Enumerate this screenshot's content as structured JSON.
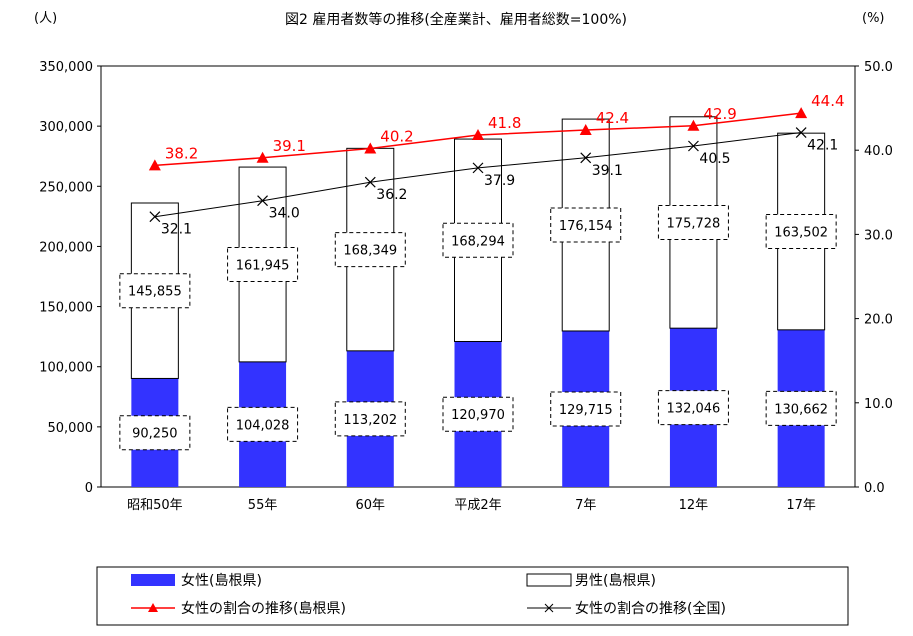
{
  "chart_data": {
    "type": "bar",
    "title": "図2 雇用者数等の推移(全産業計、雇用者総数=100%)",
    "left_unit": "(人)",
    "right_unit": "(%)",
    "categories": [
      "昭和50年",
      "55年",
      "60年",
      "平成2年",
      "7年",
      "12年",
      "17年"
    ],
    "left_axis": {
      "min": 0,
      "max": 350000,
      "ticks": [
        0,
        50000,
        100000,
        150000,
        200000,
        250000,
        300000,
        350000
      ],
      "tick_labels": [
        "0",
        "50,000",
        "100,000",
        "150,000",
        "200,000",
        "250,000",
        "300,000",
        "350,000"
      ]
    },
    "right_axis": {
      "min": 0,
      "max": 50,
      "ticks": [
        0,
        10,
        20,
        30,
        40,
        50
      ],
      "tick_labels": [
        "0.0",
        "10.0",
        "20.0",
        "30.0",
        "40.0",
        "50.0"
      ]
    },
    "series": [
      {
        "name": "女性(島根県)",
        "kind": "stacked_bar",
        "color": "#3333ff",
        "values": [
          90250,
          104028,
          113202,
          120970,
          129715,
          132046,
          130662
        ],
        "labels": [
          "90,250",
          "104,028",
          "113,202",
          "120,970",
          "129,715",
          "132,046",
          "130,662"
        ]
      },
      {
        "name": "男性(島根県)",
        "kind": "stacked_bar",
        "color": "#ffffff",
        "values": [
          145855,
          161945,
          168349,
          168294,
          176154,
          175728,
          163502
        ],
        "labels": [
          "145,855",
          "161,945",
          "168,349",
          "168,294",
          "176,154",
          "175,728",
          "163,502"
        ]
      },
      {
        "name": "女性の割合の推移(島根県)",
        "kind": "line",
        "axis": "right",
        "color": "#ff0000",
        "marker": "triangle",
        "values": [
          38.2,
          39.1,
          40.2,
          41.8,
          42.4,
          42.9,
          44.4
        ],
        "labels": [
          "38.2",
          "39.1",
          "40.2",
          "41.8",
          "42.4",
          "42.9",
          "44.4"
        ]
      },
      {
        "name": "女性の割合の推移(全国)",
        "kind": "line",
        "axis": "right",
        "color": "#000000",
        "marker": "x",
        "values": [
          32.1,
          34.0,
          36.2,
          37.9,
          39.1,
          40.5,
          42.1
        ],
        "labels": [
          "32.1",
          "34.0",
          "36.2",
          "37.9",
          "39.1",
          "40.5",
          "42.1"
        ]
      }
    ],
    "legend": {
      "placement": "bottom",
      "entries": [
        "女性(島根県)",
        "男性(島根県)",
        "女性の割合の推移(島根県)",
        "女性の割合の推移(全国)"
      ]
    }
  }
}
